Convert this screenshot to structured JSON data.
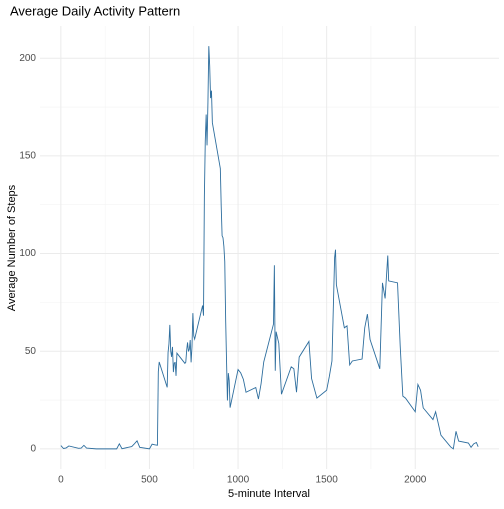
{
  "chart_data": {
    "type": "line",
    "title": "Average Daily Activity Pattern",
    "x_label": "5-minute Interval",
    "y_label": "Average Number of Steps",
    "x": [
      0,
      15,
      30,
      45,
      100,
      115,
      130,
      145,
      200,
      215,
      230,
      245,
      300,
      315,
      330,
      345,
      400,
      415,
      430,
      445,
      500,
      515,
      530,
      545,
      550,
      555,
      600,
      605,
      610,
      615,
      620,
      625,
      630,
      635,
      640,
      645,
      650,
      655,
      700,
      705,
      710,
      715,
      720,
      725,
      730,
      735,
      740,
      745,
      750,
      755,
      800,
      805,
      810,
      815,
      820,
      825,
      830,
      835,
      840,
      845,
      850,
      855,
      900,
      905,
      910,
      915,
      920,
      925,
      930,
      935,
      940,
      945,
      950,
      955,
      1000,
      1015,
      1030,
      1045,
      1100,
      1115,
      1130,
      1145,
      1200,
      1205,
      1210,
      1215,
      1230,
      1245,
      1300,
      1315,
      1330,
      1345,
      1400,
      1415,
      1430,
      1445,
      1500,
      1515,
      1530,
      1545,
      1550,
      1555,
      1600,
      1615,
      1630,
      1645,
      1700,
      1715,
      1730,
      1745,
      1800,
      1815,
      1830,
      1845,
      1850,
      1900,
      1915,
      1930,
      1945,
      2000,
      2015,
      2030,
      2045,
      2100,
      2115,
      2130,
      2145,
      2200,
      2215,
      2230,
      2245,
      2300,
      2315,
      2330,
      2345,
      2355
    ],
    "series": [
      {
        "name": "steps",
        "color": "#2e6e9e",
        "values": [
          1.7,
          0.2,
          0.5,
          1.5,
          0.3,
          0.4,
          1.8,
          0.4,
          0,
          0,
          0,
          0,
          0,
          0,
          2.6,
          0.1,
          1.2,
          2.6,
          4.1,
          0.8,
          0,
          2.4,
          2.1,
          1.9,
          39.5,
          44.5,
          31.5,
          49.3,
          53.8,
          63.5,
          50,
          47.1,
          52.2,
          39.3,
          44,
          44.2,
          37.4,
          49,
          43.8,
          44.4,
          50.5,
          54.5,
          49.9,
          51,
          55.7,
          44.3,
          52.3,
          69.5,
          57.8,
          56.2,
          73.4,
          68.2,
          129.4,
          157.5,
          171.2,
          155.4,
          177.3,
          206.2,
          195.9,
          179.6,
          183.4,
          167,
          143.5,
          124,
          109.1,
          108.1,
          103.7,
          95.9,
          66.2,
          45.2,
          24.8,
          38.8,
          35,
          21.1,
          40.6,
          38.9,
          35.6,
          29,
          31.4,
          25.5,
          33.4,
          44.5,
          63.9,
          94,
          40,
          60,
          54,
          28,
          42,
          41,
          29,
          47,
          55,
          36,
          31,
          26,
          30,
          37,
          45,
          98,
          102,
          84,
          62,
          63,
          43,
          45,
          46,
          62,
          69,
          56,
          41,
          85,
          77,
          99,
          86,
          85,
          53,
          27,
          26,
          19,
          33,
          30,
          21,
          15,
          19,
          13,
          7,
          1,
          0,
          9,
          4,
          3,
          0.8,
          2.6,
          3.3,
          1.1
        ]
      }
    ],
    "xlim": [
      -117.75,
      2472.75
    ],
    "xticks": [
      0,
      500,
      1000,
      1500,
      2000
    ],
    "ylim": [
      -10.3,
      216.5
    ],
    "yticks": [
      0,
      50,
      100,
      150,
      200
    ],
    "grid": true
  }
}
